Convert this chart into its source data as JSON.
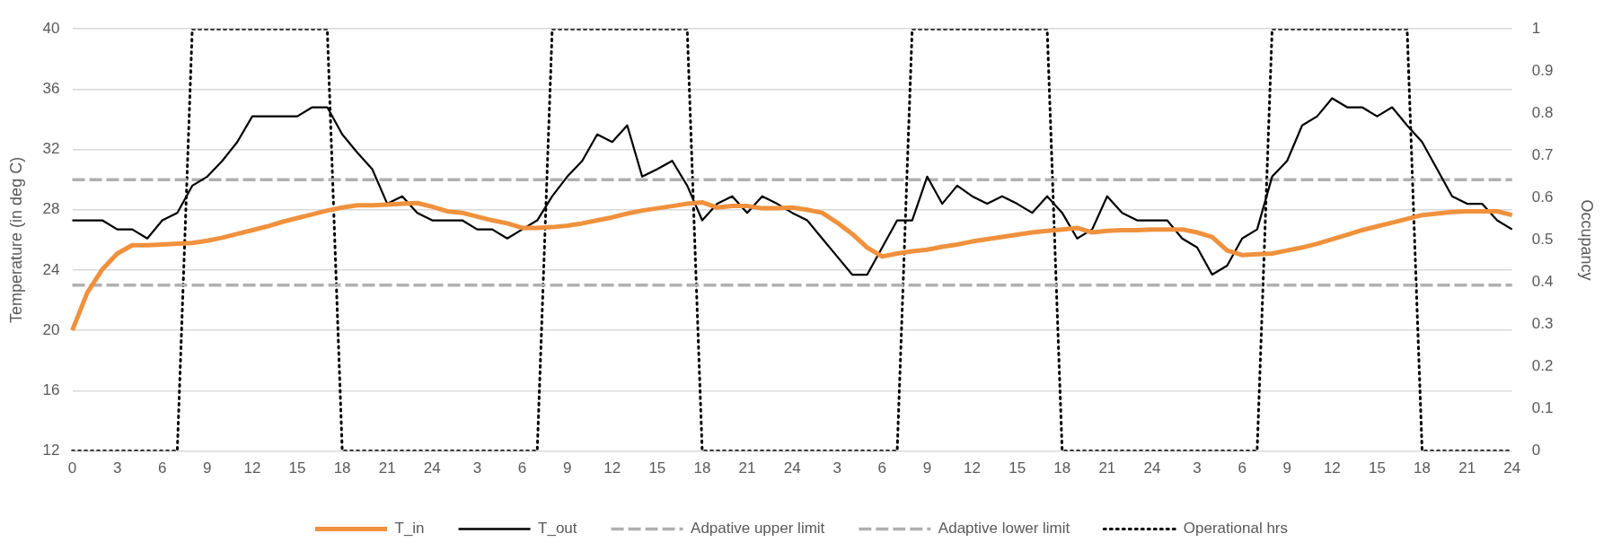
{
  "chart_data": {
    "type": "line",
    "ylabel": "Temperature (in deg C)",
    "y2label": "Occupancy",
    "categories": [
      "0",
      null,
      null,
      "3",
      null,
      null,
      "6",
      null,
      null,
      "9",
      null,
      null,
      "12",
      null,
      null,
      "15",
      null,
      null,
      "18",
      null,
      null,
      "21",
      null,
      null,
      "24",
      null,
      null,
      "3",
      null,
      null,
      "6",
      null,
      null,
      "9",
      null,
      null,
      "12",
      null,
      null,
      "15",
      null,
      null,
      "18",
      null,
      null,
      "21",
      null,
      null,
      "24",
      null,
      null,
      "3",
      null,
      null,
      "6",
      null,
      null,
      "9",
      null,
      null,
      "12",
      null,
      null,
      "15",
      null,
      null,
      "18",
      null,
      null,
      "21",
      null,
      null,
      "24",
      null,
      null,
      "3",
      null,
      null,
      "6",
      null,
      null,
      "9",
      null,
      null,
      "12",
      null,
      null,
      "15",
      null,
      null,
      "18",
      null,
      null,
      "21",
      null,
      null,
      "24"
    ],
    "series": [
      {
        "name": "T_in",
        "color": "#f0913d",
        "line_style": "solid",
        "values": [
          20.0,
          22.5,
          24.05,
          25.1,
          25.65,
          25.65,
          25.7,
          25.75,
          25.8,
          25.95,
          26.15,
          26.4,
          26.65,
          26.9,
          27.2,
          27.45,
          27.7,
          27.95,
          28.15,
          28.3,
          28.3,
          28.35,
          28.4,
          28.45,
          28.2,
          27.9,
          27.8,
          27.55,
          27.3,
          27.1,
          26.8,
          26.8,
          26.85,
          26.95,
          27.1,
          27.3,
          27.5,
          27.75,
          27.95,
          28.1,
          28.25,
          28.4,
          28.5,
          28.15,
          28.25,
          28.25,
          28.1,
          28.1,
          28.15,
          28.0,
          27.8,
          27.15,
          26.4,
          25.5,
          24.9,
          25.1,
          25.25,
          25.35,
          25.55,
          25.7,
          25.9,
          26.05,
          26.2,
          26.35,
          26.5,
          26.6,
          26.7,
          26.8,
          26.5,
          26.6,
          26.65,
          26.65,
          26.7,
          26.7,
          26.7,
          26.5,
          26.2,
          25.3,
          25.0,
          25.05,
          25.1,
          25.3,
          25.5,
          25.75,
          26.05,
          26.35,
          26.65,
          26.9,
          27.15,
          27.4,
          27.65,
          27.75,
          27.85,
          27.9,
          27.9,
          27.9,
          27.65
        ]
      },
      {
        "name": "T_out",
        "color": "#000000",
        "line_style": "solid",
        "values": [
          27.3,
          27.3,
          27.3,
          26.7,
          26.7,
          26.1,
          27.3,
          27.8,
          29.6,
          30.2,
          31.25,
          32.5,
          34.2,
          34.2,
          34.2,
          34.2,
          34.8,
          34.8,
          33.0,
          31.8,
          30.7,
          28.4,
          28.9,
          27.8,
          27.3,
          27.3,
          27.3,
          26.7,
          26.7,
          26.1,
          26.7,
          27.3,
          28.9,
          30.2,
          31.25,
          33.0,
          32.5,
          33.6,
          30.2,
          30.7,
          31.25,
          29.6,
          27.3,
          28.4,
          28.9,
          27.8,
          28.9,
          28.4,
          27.8,
          27.3,
          26.1,
          24.9,
          23.7,
          23.7,
          25.5,
          27.3,
          27.3,
          30.2,
          28.4,
          29.6,
          28.9,
          28.4,
          28.9,
          28.4,
          27.8,
          28.9,
          27.8,
          26.1,
          26.7,
          28.9,
          27.8,
          27.3,
          27.3,
          27.3,
          26.1,
          25.5,
          23.7,
          24.3,
          26.1,
          26.7,
          30.2,
          31.25,
          33.6,
          34.2,
          35.4,
          34.8,
          34.8,
          34.2,
          34.8,
          33.6,
          32.5,
          30.7,
          28.9,
          28.4,
          28.4,
          27.3,
          26.7
        ]
      },
      {
        "name": "Adpative upper limit",
        "color": "#b0b0b0",
        "line_style": "dashed",
        "values": [
          30,
          30,
          30,
          30,
          30,
          30,
          30,
          30,
          30,
          30,
          30,
          30,
          30,
          30,
          30,
          30,
          30,
          30,
          30,
          30,
          30,
          30,
          30,
          30,
          30,
          30,
          30,
          30,
          30,
          30,
          30,
          30,
          30,
          30,
          30,
          30,
          30,
          30,
          30,
          30,
          30,
          30,
          30,
          30,
          30,
          30,
          30,
          30,
          30,
          30,
          30,
          30,
          30,
          30,
          30,
          30,
          30,
          30,
          30,
          30,
          30,
          30,
          30,
          30,
          30,
          30,
          30,
          30,
          30,
          30,
          30,
          30,
          30,
          30,
          30,
          30,
          30,
          30,
          30,
          30,
          30,
          30,
          30,
          30,
          30,
          30,
          30,
          30,
          30,
          30,
          30,
          30,
          30,
          30,
          30,
          30,
          30
        ]
      },
      {
        "name": "Adaptive lower limit",
        "color": "#b0b0b0",
        "line_style": "dashed",
        "values": [
          23,
          23,
          23,
          23,
          23,
          23,
          23,
          23,
          23,
          23,
          23,
          23,
          23,
          23,
          23,
          23,
          23,
          23,
          23,
          23,
          23,
          23,
          23,
          23,
          23,
          23,
          23,
          23,
          23,
          23,
          23,
          23,
          23,
          23,
          23,
          23,
          23,
          23,
          23,
          23,
          23,
          23,
          23,
          23,
          23,
          23,
          23,
          23,
          23,
          23,
          23,
          23,
          23,
          23,
          23,
          23,
          23,
          23,
          23,
          23,
          23,
          23,
          23,
          23,
          23,
          23,
          23,
          23,
          23,
          23,
          23,
          23,
          23,
          23,
          23,
          23,
          23,
          23,
          23,
          23,
          23,
          23,
          23,
          23,
          23,
          23,
          23,
          23,
          23,
          23,
          23,
          23,
          23,
          23,
          23,
          23,
          23
        ]
      },
      {
        "name": "Operational hrs",
        "color": "#000000",
        "line_style": "dotted",
        "axis": "y2",
        "values": [
          0,
          0,
          0,
          0,
          0,
          0,
          0,
          0,
          1,
          1,
          1,
          1,
          1,
          1,
          1,
          1,
          1,
          1,
          0,
          0,
          0,
          0,
          0,
          0,
          0,
          0,
          0,
          0,
          0,
          0,
          0,
          0,
          1,
          1,
          1,
          1,
          1,
          1,
          1,
          1,
          1,
          1,
          0,
          0,
          0,
          0,
          0,
          0,
          0,
          0,
          0,
          0,
          0,
          0,
          0,
          0,
          1,
          1,
          1,
          1,
          1,
          1,
          1,
          1,
          1,
          1,
          0,
          0,
          0,
          0,
          0,
          0,
          0,
          0,
          0,
          0,
          0,
          0,
          0,
          0,
          1,
          1,
          1,
          1,
          1,
          1,
          1,
          1,
          1,
          1,
          0,
          0,
          0,
          0,
          0,
          0,
          0
        ]
      }
    ],
    "ylim": [
      12,
      40
    ],
    "yticks": [
      12,
      16,
      20,
      24,
      28,
      32,
      36,
      40
    ],
    "y2lim": [
      0,
      1
    ],
    "y2ticks": [
      0,
      0.1,
      0.2,
      0.3,
      0.4,
      0.5,
      0.6,
      0.7,
      0.8,
      0.9,
      1
    ],
    "grid": "y",
    "legend": "bottom",
    "marker": "none"
  }
}
